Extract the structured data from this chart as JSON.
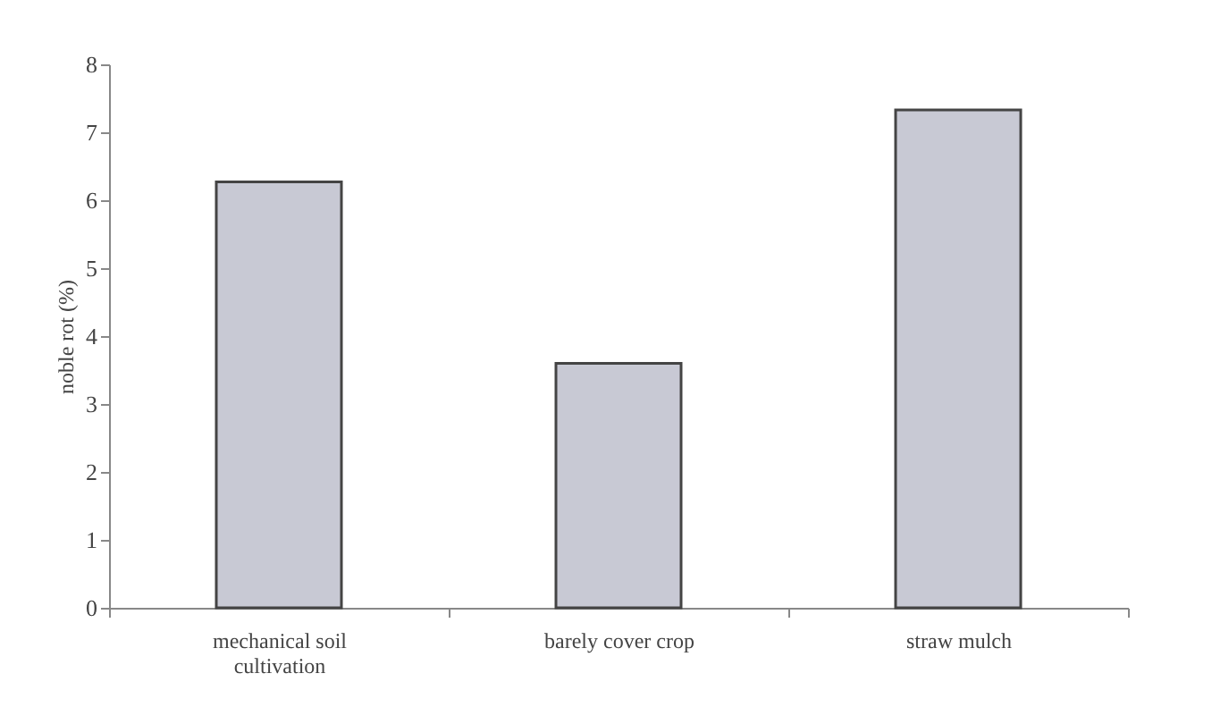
{
  "chart_data": {
    "type": "bar",
    "ylabel": "noble rot (%)",
    "categories": [
      "mechanical soil cultivation",
      "barely cover crop",
      "straw mulch"
    ],
    "values": [
      6.27,
      3.6,
      7.33
    ],
    "color": "#c8c9d4",
    "ylim": [
      0,
      8
    ],
    "yticks": [
      0,
      1,
      2,
      3,
      4,
      5,
      6,
      7,
      8
    ],
    "grid": false
  }
}
